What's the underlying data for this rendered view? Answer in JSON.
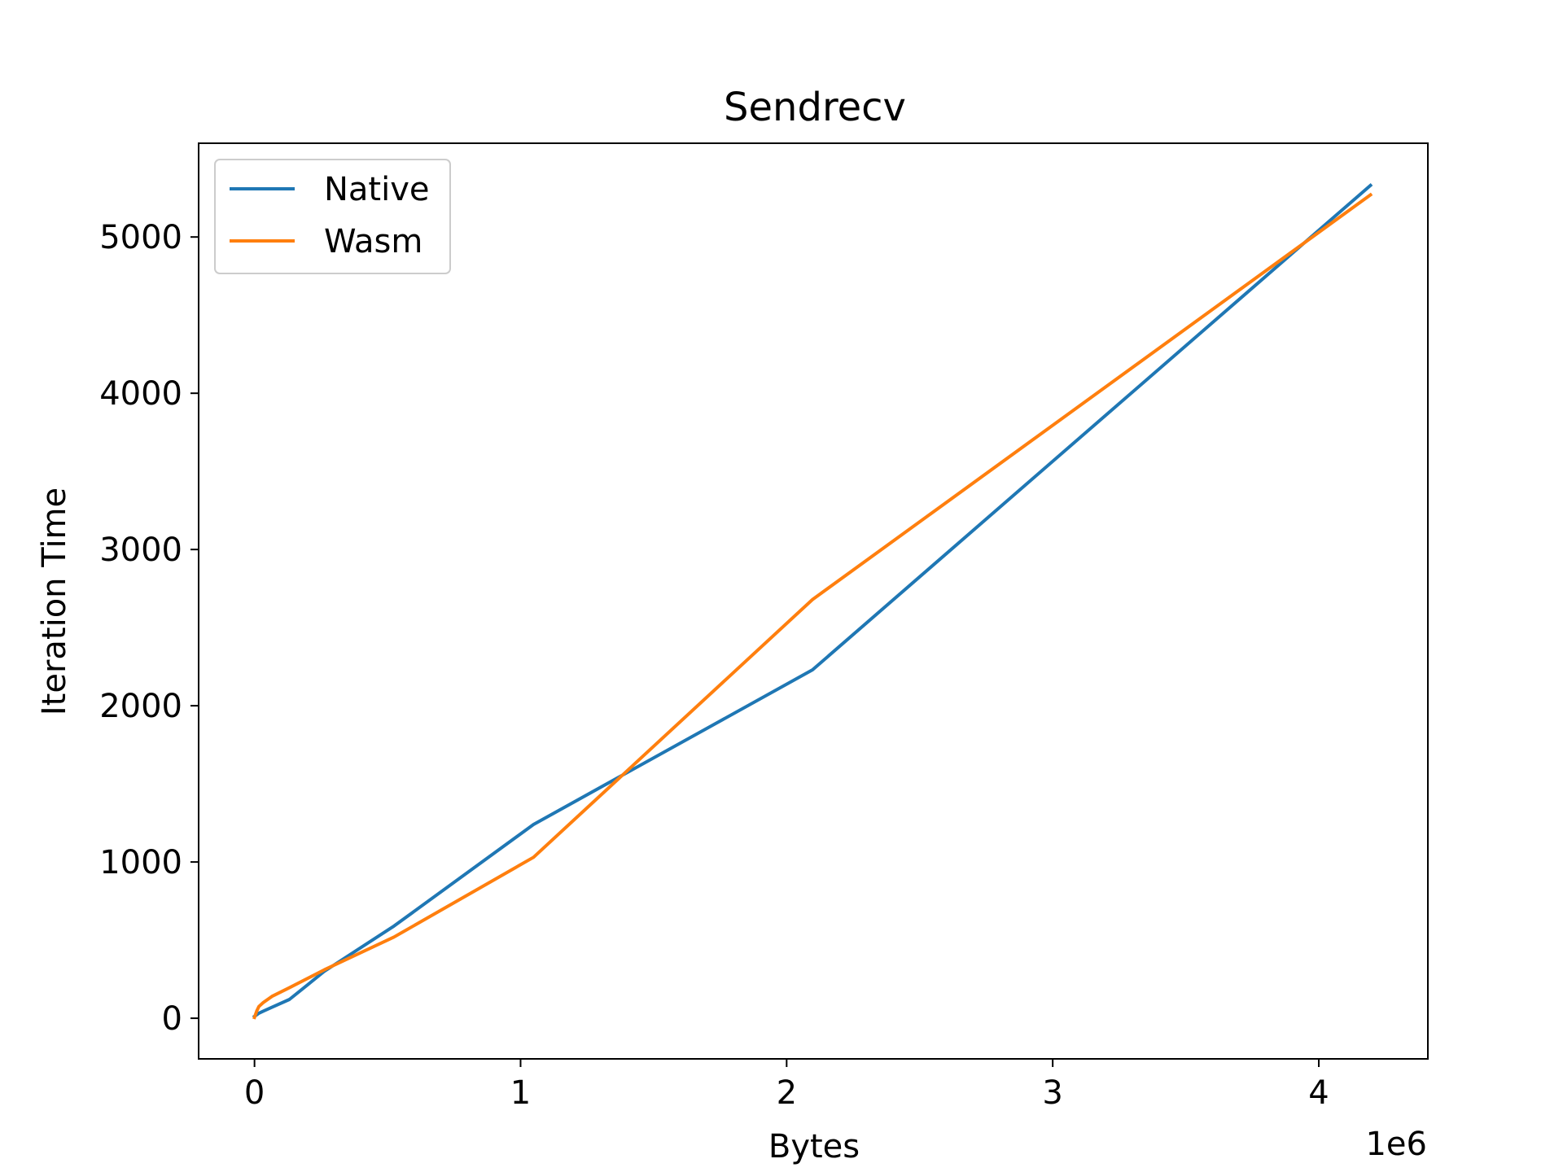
{
  "chart_data": {
    "type": "line",
    "title": "Sendrecv",
    "xlabel": "Bytes",
    "ylabel": "Iteration Time",
    "x_offset_label": "1e6",
    "x_scale_factor": 1000000,
    "xlim": [
      -210000,
      4410000
    ],
    "ylim": [
      -260,
      5600
    ],
    "x_ticks": [
      0,
      1000000,
      2000000,
      3000000,
      4000000
    ],
    "x_tick_labels": [
      "0",
      "1",
      "2",
      "3",
      "4"
    ],
    "y_ticks": [
      0,
      1000,
      2000,
      3000,
      4000,
      5000
    ],
    "y_tick_labels": [
      "0",
      "1000",
      "2000",
      "3000",
      "4000",
      "5000"
    ],
    "grid": false,
    "legend_position": "top-left",
    "series": [
      {
        "name": "Native",
        "color": "#1f77b4",
        "x": [
          0,
          8192,
          16384,
          32768,
          65536,
          131072,
          262144,
          524288,
          1048576,
          2097152,
          4194304
        ],
        "y": [
          12,
          22,
          32,
          45,
          70,
          120,
          300,
          590,
          1240,
          2230,
          5330
        ]
      },
      {
        "name": "Wasm",
        "color": "#ff7f0e",
        "x": [
          0,
          8192,
          16384,
          32768,
          65536,
          131072,
          262144,
          524288,
          1048576,
          2097152,
          4194304
        ],
        "y": [
          5,
          45,
          75,
          100,
          140,
          195,
          310,
          520,
          1030,
          2680,
          5270
        ]
      }
    ]
  }
}
